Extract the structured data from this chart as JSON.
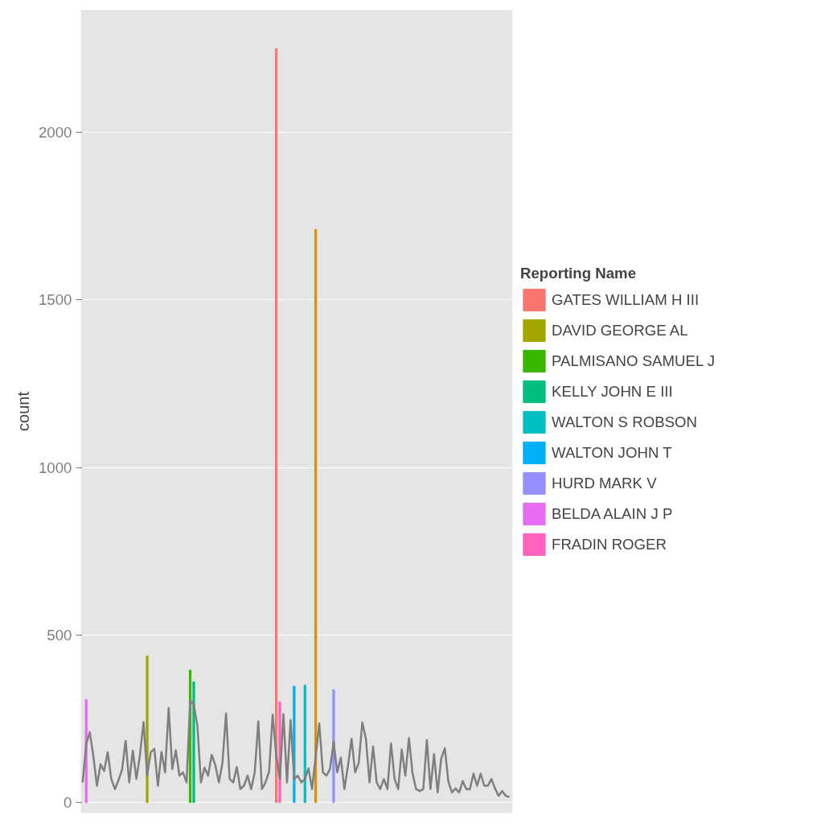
{
  "chart_data": {
    "type": "bar",
    "ylabel": "count",
    "legend_title": "Reporting Name",
    "legend": "right",
    "grid": "y",
    "tick_labels": "y",
    "ylim": [
      -31,
      2365
    ],
    "yticks": [
      0,
      500,
      1000,
      1500,
      2000
    ],
    "categories": [
      null,
      null,
      null,
      null,
      null,
      null,
      null,
      null,
      null,
      null,
      null,
      null,
      null,
      null,
      null,
      null,
      null,
      null,
      null,
      null,
      null,
      null,
      null,
      null,
      null,
      null,
      null,
      null,
      null,
      null,
      null,
      null,
      null,
      null,
      null,
      null,
      null,
      null,
      null,
      null,
      null,
      null,
      null,
      null,
      null,
      null,
      null,
      null,
      null,
      null,
      null,
      null,
      null,
      null,
      null,
      null,
      null,
      null,
      null,
      null,
      null,
      null,
      null,
      null,
      null,
      null,
      null,
      null,
      null,
      null,
      null,
      null,
      null,
      null,
      null,
      null,
      null,
      null,
      null,
      null,
      null,
      null,
      null,
      null,
      null,
      null,
      null,
      null,
      null,
      null,
      null,
      null,
      null,
      null,
      null,
      null,
      null,
      null,
      null,
      null,
      null,
      null,
      null,
      null,
      null,
      null,
      null,
      null,
      null,
      null,
      null,
      null,
      null,
      null,
      null,
      null,
      null,
      null,
      null,
      null
    ],
    "series": [
      {
        "type": "line",
        "color": "#7f7f7f",
        "values": [
          60,
          174,
          210,
          138,
          50,
          114,
          94,
          150,
          70,
          40,
          66,
          98,
          184,
          60,
          155,
          70,
          142,
          240,
          80,
          150,
          160,
          50,
          151,
          90,
          282,
          100,
          156,
          80,
          90,
          60,
          306,
          291,
          231,
          60,
          104,
          80,
          142,
          112,
          60,
          118,
          266,
          70,
          60,
          106,
          40,
          50,
          80,
          40,
          90,
          242,
          40,
          60,
          92,
          262,
          140,
          70,
          264,
          60,
          246,
          70,
          80,
          60,
          70,
          102,
          40,
          140,
          236,
          90,
          80,
          100,
          182,
          90,
          134,
          40,
          110,
          190,
          90,
          118,
          239,
          190,
          60,
          167,
          60,
          40,
          70,
          40,
          176,
          70,
          40,
          158,
          80,
          192,
          87,
          40,
          34,
          40,
          186,
          40,
          144,
          30,
          131,
          162,
          62,
          30,
          42,
          30,
          64,
          40,
          40,
          86,
          50,
          86,
          50,
          50,
          70,
          42,
          20,
          34,
          20,
          16
        ]
      },
      {
        "name": "GATES WILLIAM H III",
        "color": "#F8766D",
        "values": [
          null,
          null,
          null,
          null,
          null,
          null,
          null,
          null,
          null,
          null,
          null,
          null,
          null,
          null,
          null,
          null,
          null,
          null,
          null,
          null,
          null,
          null,
          null,
          null,
          null,
          null,
          null,
          null,
          null,
          null,
          null,
          null,
          null,
          null,
          null,
          null,
          null,
          null,
          null,
          null,
          null,
          null,
          null,
          null,
          null,
          null,
          null,
          null,
          null,
          null,
          null,
          null,
          null,
          null,
          2250,
          null,
          null,
          null,
          null,
          null,
          null,
          null,
          null,
          null,
          null,
          null,
          null,
          null,
          null,
          null,
          null,
          null,
          null,
          null,
          null,
          null,
          null,
          null,
          null,
          null,
          null,
          null,
          null,
          null,
          null,
          null,
          null,
          null,
          null,
          null,
          null,
          null,
          null,
          null,
          null,
          null,
          null,
          null,
          null,
          null,
          null,
          null,
          null,
          null,
          null,
          null,
          null,
          null,
          null,
          null,
          null,
          null,
          null,
          null,
          null,
          null,
          null,
          null,
          null,
          null
        ]
      },
      {
        "color": "#D89000",
        "values": [
          null,
          null,
          null,
          null,
          null,
          null,
          null,
          null,
          null,
          null,
          null,
          null,
          null,
          null,
          null,
          null,
          null,
          null,
          null,
          null,
          null,
          null,
          null,
          null,
          null,
          null,
          null,
          null,
          null,
          null,
          null,
          null,
          null,
          null,
          null,
          null,
          null,
          null,
          null,
          null,
          null,
          null,
          null,
          null,
          null,
          null,
          null,
          null,
          null,
          null,
          null,
          null,
          null,
          null,
          null,
          null,
          null,
          null,
          null,
          null,
          null,
          null,
          null,
          null,
          null,
          1710,
          null,
          null,
          null,
          null,
          null,
          null,
          null,
          null,
          null,
          null,
          null,
          null,
          null,
          null,
          null,
          null,
          null,
          null,
          null,
          null,
          null,
          null,
          null,
          null,
          null,
          null,
          null,
          null,
          null,
          null,
          null,
          null,
          null,
          null,
          null,
          null,
          null,
          null,
          null,
          null,
          null,
          null,
          null,
          null,
          null,
          null,
          null,
          null,
          null,
          null,
          null,
          null,
          null,
          null
        ]
      },
      {
        "name": "DAVID GEORGE AL",
        "color": "#A3A500",
        "values": [
          null,
          null,
          null,
          null,
          null,
          null,
          null,
          null,
          null,
          null,
          null,
          null,
          null,
          null,
          null,
          null,
          null,
          null,
          437,
          null,
          null,
          null,
          null,
          null,
          null,
          null,
          null,
          null,
          null,
          null,
          null,
          null,
          null,
          null,
          null,
          null,
          null,
          null,
          null,
          null,
          null,
          null,
          null,
          null,
          null,
          null,
          null,
          null,
          null,
          null,
          null,
          null,
          null,
          null,
          null,
          null,
          null,
          null,
          null,
          null,
          null,
          null,
          null,
          null,
          null,
          null,
          null,
          null,
          null,
          null,
          null,
          null,
          null,
          null,
          null,
          null,
          null,
          null,
          null,
          null,
          null,
          null,
          null,
          null,
          null,
          null,
          null,
          null,
          null,
          null,
          null,
          null,
          null,
          null,
          null,
          null,
          null,
          null,
          null,
          null,
          null,
          null,
          null,
          null,
          null,
          null,
          null,
          null,
          null,
          null,
          null,
          null,
          null,
          null,
          null,
          null,
          null,
          null,
          null,
          null
        ]
      },
      {
        "name": "PALMISANO SAMUEL J",
        "color": "#39B600",
        "values": [
          null,
          null,
          null,
          null,
          null,
          null,
          null,
          null,
          null,
          null,
          null,
          null,
          null,
          null,
          null,
          null,
          null,
          null,
          null,
          null,
          null,
          null,
          null,
          null,
          null,
          null,
          null,
          null,
          null,
          null,
          395,
          null,
          null,
          null,
          null,
          null,
          null,
          null,
          null,
          null,
          null,
          null,
          null,
          null,
          null,
          null,
          null,
          null,
          null,
          null,
          null,
          null,
          null,
          null,
          null,
          null,
          null,
          null,
          null,
          null,
          null,
          null,
          null,
          null,
          null,
          null,
          null,
          null,
          null,
          null,
          null,
          null,
          null,
          null,
          null,
          null,
          null,
          null,
          null,
          null,
          null,
          null,
          null,
          null,
          null,
          null,
          null,
          null,
          null,
          null,
          null,
          null,
          null,
          null,
          null,
          null,
          null,
          null,
          null,
          null,
          null,
          null,
          null,
          null,
          null,
          null,
          null,
          null,
          null,
          null,
          null,
          null,
          null,
          null,
          null,
          null,
          null,
          null,
          null,
          null
        ]
      },
      {
        "name": "KELLY JOHN E III",
        "color": "#00BF7D",
        "values": [
          null,
          null,
          null,
          null,
          null,
          null,
          null,
          null,
          null,
          null,
          null,
          null,
          null,
          null,
          null,
          null,
          null,
          null,
          null,
          null,
          null,
          null,
          null,
          null,
          null,
          null,
          null,
          null,
          null,
          null,
          null,
          360,
          null,
          null,
          null,
          null,
          null,
          null,
          null,
          null,
          null,
          null,
          null,
          null,
          null,
          null,
          null,
          null,
          null,
          null,
          null,
          null,
          null,
          null,
          null,
          null,
          null,
          null,
          null,
          null,
          null,
          null,
          null,
          null,
          null,
          null,
          null,
          null,
          null,
          null,
          null,
          null,
          null,
          null,
          null,
          null,
          null,
          null,
          null,
          null,
          null,
          null,
          null,
          null,
          null,
          null,
          null,
          null,
          null,
          null,
          null,
          null,
          null,
          null,
          null,
          null,
          null,
          null,
          null,
          null,
          null,
          null,
          null,
          null,
          null,
          null,
          null,
          null,
          null,
          null,
          null,
          null,
          null,
          null,
          null,
          null,
          null,
          null,
          null,
          null
        ]
      },
      {
        "name": "WALTON S ROBSON",
        "color": "#00BFC4",
        "values": [
          null,
          null,
          null,
          null,
          null,
          null,
          null,
          null,
          null,
          null,
          null,
          null,
          null,
          null,
          null,
          null,
          null,
          null,
          null,
          null,
          null,
          null,
          null,
          null,
          null,
          null,
          null,
          null,
          null,
          null,
          null,
          null,
          null,
          null,
          null,
          null,
          null,
          null,
          null,
          null,
          null,
          null,
          null,
          null,
          null,
          null,
          null,
          null,
          null,
          null,
          null,
          null,
          null,
          null,
          null,
          null,
          null,
          null,
          null,
          null,
          null,
          null,
          350,
          null,
          null,
          null,
          null,
          null,
          null,
          null,
          null,
          null,
          null,
          null,
          null,
          null,
          null,
          null,
          null,
          null,
          null,
          null,
          null,
          null,
          null,
          null,
          null,
          null,
          null,
          null,
          null,
          null,
          null,
          null,
          null,
          null,
          null,
          null,
          null,
          null,
          null,
          null,
          null,
          null,
          null,
          null,
          null,
          null,
          null,
          null,
          null,
          null,
          null,
          null,
          null,
          null,
          null,
          null,
          null,
          null
        ]
      },
      {
        "name": "WALTON JOHN T",
        "color": "#00B0F6",
        "values": [
          null,
          null,
          null,
          null,
          null,
          null,
          null,
          null,
          null,
          null,
          null,
          null,
          null,
          null,
          null,
          null,
          null,
          null,
          null,
          null,
          null,
          null,
          null,
          null,
          null,
          null,
          null,
          null,
          null,
          null,
          null,
          null,
          null,
          null,
          null,
          null,
          null,
          null,
          null,
          null,
          null,
          null,
          null,
          null,
          null,
          null,
          null,
          null,
          null,
          null,
          null,
          null,
          null,
          null,
          null,
          null,
          null,
          null,
          null,
          347,
          null,
          null,
          null,
          null,
          null,
          null,
          null,
          null,
          null,
          null,
          null,
          null,
          null,
          null,
          null,
          null,
          null,
          null,
          null,
          null,
          null,
          null,
          null,
          null,
          null,
          null,
          null,
          null,
          null,
          null,
          null,
          null,
          null,
          null,
          null,
          null,
          null,
          null,
          null,
          null,
          null,
          null,
          null,
          null,
          null,
          null,
          null,
          null,
          null,
          null,
          null,
          null,
          null,
          null,
          null,
          null,
          null,
          null,
          null,
          null
        ]
      },
      {
        "name": "HURD MARK V",
        "color": "#9590FF",
        "values": [
          null,
          null,
          null,
          null,
          null,
          null,
          null,
          null,
          null,
          null,
          null,
          null,
          null,
          null,
          null,
          null,
          null,
          null,
          null,
          null,
          null,
          null,
          null,
          null,
          null,
          null,
          null,
          null,
          null,
          null,
          null,
          null,
          null,
          null,
          null,
          null,
          null,
          null,
          null,
          null,
          null,
          null,
          null,
          null,
          null,
          null,
          null,
          null,
          null,
          null,
          null,
          null,
          null,
          null,
          null,
          null,
          null,
          null,
          null,
          null,
          null,
          null,
          null,
          null,
          null,
          null,
          null,
          null,
          null,
          null,
          337,
          null,
          null,
          null,
          null,
          null,
          null,
          null,
          null,
          null,
          null,
          null,
          null,
          null,
          null,
          null,
          null,
          null,
          null,
          null,
          null,
          null,
          null,
          null,
          null,
          null,
          null,
          null,
          null,
          null,
          null,
          null,
          null,
          null,
          null,
          null,
          null,
          null,
          null,
          null,
          null,
          null,
          null,
          null,
          null,
          null,
          null,
          null,
          null,
          null
        ]
      },
      {
        "name": "BELDA ALAIN J P",
        "color": "#E76BF3",
        "values": [
          null,
          307,
          null,
          null,
          null,
          null,
          null,
          null,
          null,
          null,
          null,
          null,
          null,
          null,
          null,
          null,
          null,
          null,
          null,
          null,
          null,
          null,
          null,
          null,
          null,
          null,
          null,
          null,
          null,
          null,
          null,
          null,
          null,
          null,
          null,
          null,
          null,
          null,
          null,
          null,
          null,
          null,
          null,
          null,
          null,
          null,
          null,
          null,
          null,
          null,
          null,
          null,
          null,
          null,
          null,
          null,
          null,
          null,
          null,
          null,
          null,
          null,
          null,
          null,
          null,
          null,
          null,
          null,
          null,
          null,
          null,
          null,
          null,
          null,
          null,
          null,
          null,
          null,
          null,
          null,
          null,
          null,
          null,
          null,
          null,
          null,
          null,
          null,
          null,
          null,
          null,
          null,
          null,
          null,
          null,
          null,
          null,
          null,
          null,
          null,
          null,
          null,
          null,
          null,
          null,
          null,
          null,
          null,
          null,
          null,
          null,
          null,
          null,
          null,
          null,
          null,
          null,
          null,
          null,
          null
        ]
      },
      {
        "name": "FRADIN ROGER",
        "color": "#FF62BC",
        "values": [
          null,
          null,
          null,
          null,
          null,
          null,
          null,
          null,
          null,
          null,
          null,
          null,
          null,
          null,
          null,
          null,
          null,
          null,
          null,
          null,
          null,
          null,
          null,
          null,
          null,
          null,
          null,
          null,
          null,
          null,
          null,
          null,
          null,
          null,
          null,
          null,
          null,
          null,
          null,
          null,
          null,
          null,
          null,
          null,
          null,
          null,
          null,
          null,
          null,
          null,
          null,
          null,
          null,
          null,
          null,
          300,
          null,
          null,
          null,
          null,
          null,
          null,
          null,
          null,
          null,
          null,
          null,
          null,
          null,
          null,
          null,
          null,
          null,
          null,
          null,
          null,
          null,
          null,
          null,
          null,
          null,
          null,
          null,
          null,
          null,
          null,
          null,
          null,
          null,
          null,
          null,
          null,
          null,
          null,
          null,
          null,
          null,
          null,
          null,
          null,
          null,
          null,
          null,
          null,
          null,
          null,
          null,
          null,
          null,
          null,
          null,
          null,
          null,
          null,
          null,
          null,
          null,
          null,
          null,
          null
        ]
      }
    ]
  }
}
